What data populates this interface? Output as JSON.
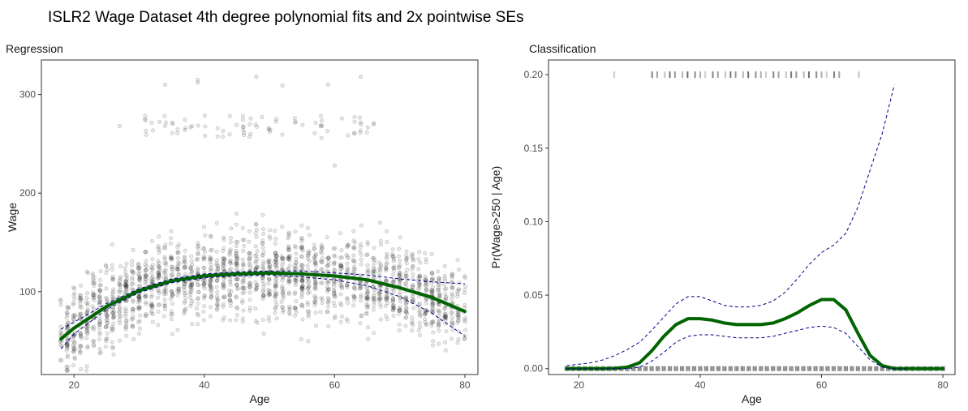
{
  "title": "ISLR2 Wage Dataset 4th degree polynomial fits and 2x pointwise SEs",
  "colors": {
    "fit": "#006400",
    "se": "#00008B",
    "points": "#000000",
    "panel_border": "#333333"
  },
  "chart_data": [
    {
      "id": "regression",
      "type": "scatter",
      "panel_title": "Regression",
      "xlabel": "Age",
      "ylabel": "Wage",
      "xlim": [
        15,
        82
      ],
      "ylim": [
        16,
        335
      ],
      "xticks": [
        20,
        40,
        60,
        80
      ],
      "yticks": [
        100,
        200,
        300
      ],
      "grid": false,
      "point_clusters": [
        {
          "age_range": [
            18,
            80
          ],
          "wage_range": [
            20,
            200
          ],
          "count": 2000
        },
        {
          "age_range": [
            30,
            66
          ],
          "wage_range": [
            255,
            320
          ],
          "count": 80
        }
      ],
      "outlier_points": [
        [
          34,
          310
        ],
        [
          39,
          315
        ],
        [
          39,
          312
        ],
        [
          48,
          318
        ],
        [
          52,
          309
        ],
        [
          59,
          310
        ],
        [
          64,
          318
        ],
        [
          27,
          268
        ],
        [
          60,
          228
        ],
        [
          58,
          256
        ]
      ],
      "series": [
        {
          "role": "fit",
          "x": [
            18,
            20,
            25,
            30,
            35,
            40,
            45,
            50,
            55,
            60,
            65,
            70,
            75,
            80
          ],
          "y": [
            52,
            63,
            85,
            101,
            111,
            116,
            118,
            119,
            118,
            116,
            112,
            104,
            94,
            80
          ]
        },
        {
          "role": "upper-se",
          "x": [
            18,
            20,
            25,
            30,
            35,
            40,
            45,
            50,
            55,
            60,
            65,
            70,
            75,
            80
          ],
          "y": [
            62,
            69,
            88,
            103,
            113,
            118,
            120,
            121,
            121,
            119,
            117,
            113,
            110,
            108
          ]
        },
        {
          "role": "lower-se",
          "x": [
            18,
            20,
            25,
            30,
            35,
            40,
            45,
            50,
            55,
            60,
            65,
            70,
            75,
            80
          ],
          "y": [
            42,
            57,
            82,
            99,
            109,
            114,
            116,
            117,
            115,
            112,
            106,
            95,
            78,
            55
          ]
        }
      ]
    },
    {
      "id": "classification",
      "type": "line",
      "panel_title": "Classification",
      "xlabel": "Age",
      "ylabel": "Pr(Wage>250 | Age)",
      "xlim": [
        15,
        82
      ],
      "ylim": [
        -0.004,
        0.21
      ],
      "xticks": [
        20,
        40,
        60,
        80
      ],
      "yticks": [
        0.0,
        0.05,
        0.1,
        0.15,
        0.2
      ],
      "ytick_labels": [
        "0.00",
        "0.05",
        "0.10",
        "0.15",
        "0.20"
      ],
      "grid": false,
      "rug_top_y": 0.2,
      "rug_top_x": [
        26,
        32,
        33,
        34,
        35,
        36,
        37,
        38,
        39,
        40,
        41,
        42,
        43,
        44,
        45,
        46,
        47,
        48,
        49,
        50,
        51,
        52,
        53,
        54,
        55,
        56,
        57,
        58,
        59,
        60,
        61,
        62,
        63,
        66
      ],
      "rug_bottom_y": 0.0,
      "rug_bottom_x": [
        18,
        19,
        20,
        21,
        22,
        23,
        24,
        25,
        26,
        27,
        28,
        29,
        30,
        31,
        32,
        33,
        34,
        35,
        36,
        37,
        38,
        39,
        40,
        41,
        42,
        43,
        44,
        45,
        46,
        47,
        48,
        49,
        50,
        51,
        52,
        53,
        54,
        55,
        56,
        57,
        58,
        59,
        60,
        61,
        62,
        63,
        64,
        65,
        66,
        67,
        68,
        69,
        70,
        71,
        72,
        73,
        74,
        75,
        76,
        77,
        78,
        79,
        80
      ],
      "series": [
        {
          "role": "fit",
          "x": [
            18,
            20,
            22,
            24,
            26,
            28,
            30,
            32,
            34,
            36,
            38,
            40,
            42,
            44,
            46,
            48,
            50,
            52,
            54,
            56,
            58,
            60,
            62,
            64,
            66,
            68,
            70,
            72,
            74,
            76,
            78,
            80
          ],
          "y": [
            0,
            0,
            0,
            0,
            0.0002,
            0.001,
            0.004,
            0.012,
            0.022,
            0.03,
            0.034,
            0.034,
            0.033,
            0.031,
            0.03,
            0.03,
            0.03,
            0.031,
            0.034,
            0.038,
            0.043,
            0.047,
            0.047,
            0.04,
            0.024,
            0.009,
            0.002,
            0,
            0,
            0,
            0,
            0
          ]
        },
        {
          "role": "upper-se",
          "x": [
            18,
            20,
            22,
            24,
            26,
            28,
            30,
            32,
            34,
            36,
            38,
            40,
            42,
            44,
            46,
            48,
            50,
            52,
            54,
            56,
            58,
            60,
            62,
            64,
            66,
            68,
            70,
            72
          ],
          "y": [
            0.002,
            0.003,
            0.004,
            0.006,
            0.009,
            0.013,
            0.018,
            0.026,
            0.035,
            0.044,
            0.049,
            0.049,
            0.046,
            0.043,
            0.042,
            0.042,
            0.043,
            0.046,
            0.052,
            0.061,
            0.071,
            0.079,
            0.084,
            0.092,
            0.11,
            0.135,
            0.16,
            0.193
          ]
        },
        {
          "role": "lower-se",
          "x": [
            18,
            20,
            22,
            24,
            26,
            28,
            30,
            32,
            34,
            36,
            38,
            40,
            42,
            44,
            46,
            48,
            50,
            52,
            54,
            56,
            58,
            60,
            62,
            64,
            66,
            68,
            70,
            72,
            74
          ],
          "y": [
            0,
            0,
            0,
            0,
            0,
            0,
            0.001,
            0.005,
            0.011,
            0.018,
            0.022,
            0.023,
            0.023,
            0.022,
            0.021,
            0.021,
            0.021,
            0.022,
            0.024,
            0.026,
            0.028,
            0.029,
            0.028,
            0.024,
            0.015,
            0.006,
            0.001,
            0,
            0
          ]
        }
      ]
    }
  ]
}
